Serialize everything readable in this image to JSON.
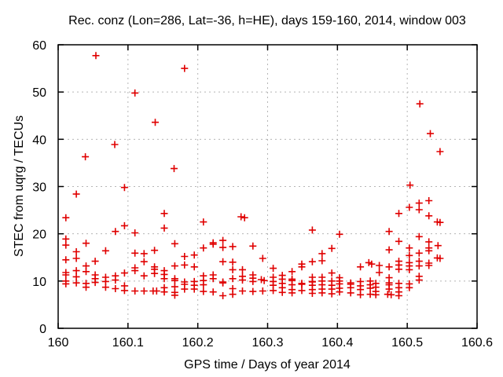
{
  "chart_data": {
    "type": "scatter",
    "title": "Rec. conz (Lon=286, Lat=-36, h=HE), days 159-160, 2014, window 003",
    "xlabel": "GPS time / Days of year 2014",
    "ylabel": "STEC from uqrg / TECUs",
    "xlim": [
      160,
      160.6
    ],
    "ylim": [
      0,
      60
    ],
    "xticks": [
      160,
      160.1,
      160.2,
      160.3,
      160.4,
      160.5,
      160.6
    ],
    "xtick_labels": [
      "160",
      "160.1",
      "160.2",
      "160.3",
      "160.4",
      "160.5",
      "160.6"
    ],
    "yticks": [
      0,
      10,
      20,
      30,
      40,
      50,
      60
    ],
    "ytick_labels": [
      "0",
      "10",
      "20",
      "30",
      "40",
      "50",
      "60"
    ],
    "grid": true,
    "legend_position": "none",
    "marker": "plus",
    "marker_color": "#e00000",
    "grid_color": "#b5b5b5",
    "axis_color": "#000000",
    "text_color": "#000000",
    "background_color": "#ffffff",
    "series": [
      {
        "name": "STEC from uqrg",
        "points": [
          [
            160.054,
            57.7
          ],
          [
            160.181,
            55.0
          ],
          [
            160.11,
            49.8
          ],
          [
            160.518,
            47.5
          ],
          [
            160.139,
            43.6
          ],
          [
            160.533,
            41.2
          ],
          [
            160.081,
            38.9
          ],
          [
            160.547,
            37.4
          ],
          [
            160.039,
            36.3
          ],
          [
            160.166,
            33.8
          ],
          [
            160.504,
            30.3
          ],
          [
            160.095,
            29.8
          ],
          [
            160.026,
            28.4
          ],
          [
            160.011,
            23.4
          ],
          [
            160.011,
            18.9
          ],
          [
            160.011,
            17.6
          ],
          [
            160.011,
            14.5
          ],
          [
            160.011,
            11.8
          ],
          [
            160.011,
            11.3
          ],
          [
            160.011,
            10.0
          ],
          [
            160.011,
            9.4
          ],
          [
            160.026,
            16.2
          ],
          [
            160.026,
            14.8
          ],
          [
            160.026,
            12.2
          ],
          [
            160.026,
            10.9
          ],
          [
            160.026,
            9.6
          ],
          [
            160.04,
            18.0
          ],
          [
            160.04,
            13.2
          ],
          [
            160.04,
            12.0
          ],
          [
            160.04,
            9.5
          ],
          [
            160.04,
            8.7
          ],
          [
            160.053,
            14.2
          ],
          [
            160.053,
            11.3
          ],
          [
            160.053,
            10.5
          ],
          [
            160.053,
            9.7
          ],
          [
            160.068,
            16.4
          ],
          [
            160.068,
            10.8
          ],
          [
            160.068,
            9.9
          ],
          [
            160.068,
            8.7
          ],
          [
            160.082,
            20.5
          ],
          [
            160.082,
            11.1
          ],
          [
            160.082,
            10.2
          ],
          [
            160.082,
            8.4
          ],
          [
            160.095,
            21.7
          ],
          [
            160.095,
            11.7
          ],
          [
            160.095,
            9.0
          ],
          [
            160.095,
            8.0
          ],
          [
            160.11,
            20.2
          ],
          [
            160.11,
            15.9
          ],
          [
            160.11,
            12.8
          ],
          [
            160.11,
            12.2
          ],
          [
            160.11,
            7.9
          ],
          [
            160.123,
            15.8
          ],
          [
            160.123,
            14.1
          ],
          [
            160.123,
            11.1
          ],
          [
            160.123,
            7.9
          ],
          [
            160.138,
            16.5
          ],
          [
            160.138,
            13.0
          ],
          [
            160.138,
            12.5
          ],
          [
            160.138,
            11.6
          ],
          [
            160.136,
            7.9
          ],
          [
            160.141,
            7.9
          ],
          [
            160.152,
            24.3
          ],
          [
            160.152,
            21.2
          ],
          [
            160.152,
            12.2
          ],
          [
            160.152,
            11.4
          ],
          [
            160.152,
            10.5
          ],
          [
            160.152,
            8.6
          ],
          [
            160.152,
            7.7
          ],
          [
            160.167,
            17.9
          ],
          [
            160.167,
            13.2
          ],
          [
            160.167,
            10.5
          ],
          [
            160.167,
            10.1
          ],
          [
            160.167,
            8.8
          ],
          [
            160.167,
            7.6
          ],
          [
            160.167,
            7.0
          ],
          [
            160.181,
            15.2
          ],
          [
            160.181,
            13.4
          ],
          [
            160.181,
            9.8
          ],
          [
            160.181,
            9.3
          ],
          [
            160.181,
            8.3
          ],
          [
            160.195,
            15.5
          ],
          [
            160.195,
            13.0
          ],
          [
            160.195,
            9.9
          ],
          [
            160.195,
            9.1
          ],
          [
            160.195,
            8.3
          ],
          [
            160.208,
            22.5
          ],
          [
            160.208,
            17.0
          ],
          [
            160.208,
            11.1
          ],
          [
            160.208,
            10.1
          ],
          [
            160.208,
            9.2
          ],
          [
            160.208,
            7.8
          ],
          [
            160.222,
            18.1
          ],
          [
            160.222,
            17.8
          ],
          [
            160.222,
            11.3
          ],
          [
            160.222,
            10.5
          ],
          [
            160.222,
            7.7
          ],
          [
            160.236,
            18.6
          ],
          [
            160.236,
            17.1
          ],
          [
            160.236,
            14.1
          ],
          [
            160.236,
            9.8
          ],
          [
            160.236,
            9.6
          ],
          [
            160.236,
            6.9
          ],
          [
            160.25,
            17.3
          ],
          [
            160.25,
            14.0
          ],
          [
            160.25,
            12.4
          ],
          [
            160.25,
            10.5
          ],
          [
            160.25,
            8.4
          ],
          [
            160.25,
            7.2
          ],
          [
            160.262,
            23.6
          ],
          [
            160.267,
            23.4
          ],
          [
            160.264,
            12.4
          ],
          [
            160.264,
            11.0
          ],
          [
            160.264,
            10.2
          ],
          [
            160.264,
            7.9
          ],
          [
            160.279,
            17.4
          ],
          [
            160.279,
            11.3
          ],
          [
            160.279,
            10.6
          ],
          [
            160.279,
            9.9
          ],
          [
            160.279,
            7.8
          ],
          [
            160.293,
            14.8
          ],
          [
            160.291,
            10.3
          ],
          [
            160.295,
            10.1
          ],
          [
            160.293,
            7.9
          ],
          [
            160.308,
            12.7
          ],
          [
            160.308,
            10.8
          ],
          [
            160.308,
            9.9
          ],
          [
            160.308,
            9.1
          ],
          [
            160.308,
            8.0
          ],
          [
            160.321,
            11.2
          ],
          [
            160.321,
            10.4
          ],
          [
            160.321,
            9.5
          ],
          [
            160.321,
            8.6
          ],
          [
            160.321,
            7.6
          ],
          [
            160.335,
            12.0
          ],
          [
            160.335,
            10.4
          ],
          [
            160.335,
            10.1
          ],
          [
            160.335,
            9.2
          ],
          [
            160.335,
            8.2
          ],
          [
            160.335,
            7.5
          ],
          [
            160.349,
            13.6
          ],
          [
            160.349,
            13.0
          ],
          [
            160.349,
            9.5
          ],
          [
            160.349,
            9.3
          ],
          [
            160.349,
            8.0
          ],
          [
            160.364,
            20.8
          ],
          [
            160.364,
            14.1
          ],
          [
            160.364,
            10.8
          ],
          [
            160.364,
            9.9
          ],
          [
            160.364,
            9.8
          ],
          [
            160.364,
            9.1
          ],
          [
            160.364,
            8.2
          ],
          [
            160.364,
            7.4
          ],
          [
            160.378,
            15.8
          ],
          [
            160.378,
            14.3
          ],
          [
            160.378,
            10.8
          ],
          [
            160.378,
            10.0
          ],
          [
            160.378,
            9.2
          ],
          [
            160.378,
            8.3
          ],
          [
            160.378,
            7.5
          ],
          [
            160.392,
            16.9
          ],
          [
            160.392,
            11.7
          ],
          [
            160.392,
            10.0
          ],
          [
            160.392,
            9.1
          ],
          [
            160.392,
            8.3
          ],
          [
            160.392,
            7.3
          ],
          [
            160.403,
            19.9
          ],
          [
            160.403,
            10.7
          ],
          [
            160.403,
            10.0
          ],
          [
            160.403,
            9.4
          ],
          [
            160.403,
            8.5
          ],
          [
            160.403,
            7.7
          ],
          [
            160.419,
            9.6
          ],
          [
            160.419,
            9.3
          ],
          [
            160.419,
            8.6
          ],
          [
            160.419,
            7.5
          ],
          [
            160.433,
            13.0
          ],
          [
            160.433,
            9.9
          ],
          [
            160.433,
            9.0
          ],
          [
            160.433,
            8.2
          ],
          [
            160.433,
            7.1
          ],
          [
            160.445,
            13.9
          ],
          [
            160.449,
            13.6
          ],
          [
            160.447,
            10.0
          ],
          [
            160.447,
            9.2
          ],
          [
            160.447,
            8.5
          ],
          [
            160.447,
            7.2
          ],
          [
            160.455,
            9.5
          ],
          [
            160.455,
            8.7
          ],
          [
            160.455,
            7.8
          ],
          [
            160.455,
            7.1
          ],
          [
            160.46,
            13.3
          ],
          [
            160.46,
            11.8
          ],
          [
            160.474,
            20.5
          ],
          [
            160.474,
            16.6
          ],
          [
            160.474,
            13.0
          ],
          [
            160.474,
            10.7
          ],
          [
            160.474,
            9.6
          ],
          [
            160.474,
            9.2
          ],
          [
            160.474,
            8.3
          ],
          [
            160.472,
            7.2
          ],
          [
            160.477,
            7.1
          ],
          [
            160.488,
            24.3
          ],
          [
            160.488,
            18.4
          ],
          [
            160.488,
            14.2
          ],
          [
            160.488,
            13.4
          ],
          [
            160.488,
            12.5
          ],
          [
            160.488,
            9.5
          ],
          [
            160.488,
            8.6
          ],
          [
            160.488,
            7.7
          ],
          [
            160.488,
            6.9
          ],
          [
            160.503,
            25.6
          ],
          [
            160.503,
            17.0
          ],
          [
            160.503,
            15.4
          ],
          [
            160.503,
            13.9
          ],
          [
            160.503,
            13.2
          ],
          [
            160.503,
            12.4
          ],
          [
            160.503,
            9.4
          ],
          [
            160.503,
            8.6
          ],
          [
            160.517,
            26.5
          ],
          [
            160.517,
            25.1
          ],
          [
            160.517,
            19.4
          ],
          [
            160.517,
            15.9
          ],
          [
            160.517,
            14.2
          ],
          [
            160.517,
            13.2
          ],
          [
            160.517,
            11.0
          ],
          [
            160.517,
            10.2
          ],
          [
            160.531,
            27.0
          ],
          [
            160.531,
            23.8
          ],
          [
            160.531,
            18.3
          ],
          [
            160.531,
            17.0
          ],
          [
            160.531,
            16.4
          ],
          [
            160.531,
            13.8
          ],
          [
            160.531,
            13.3
          ],
          [
            160.543,
            22.5
          ],
          [
            160.547,
            22.4
          ],
          [
            160.544,
            17.5
          ],
          [
            160.543,
            14.9
          ],
          [
            160.547,
            14.8
          ]
        ]
      }
    ]
  }
}
